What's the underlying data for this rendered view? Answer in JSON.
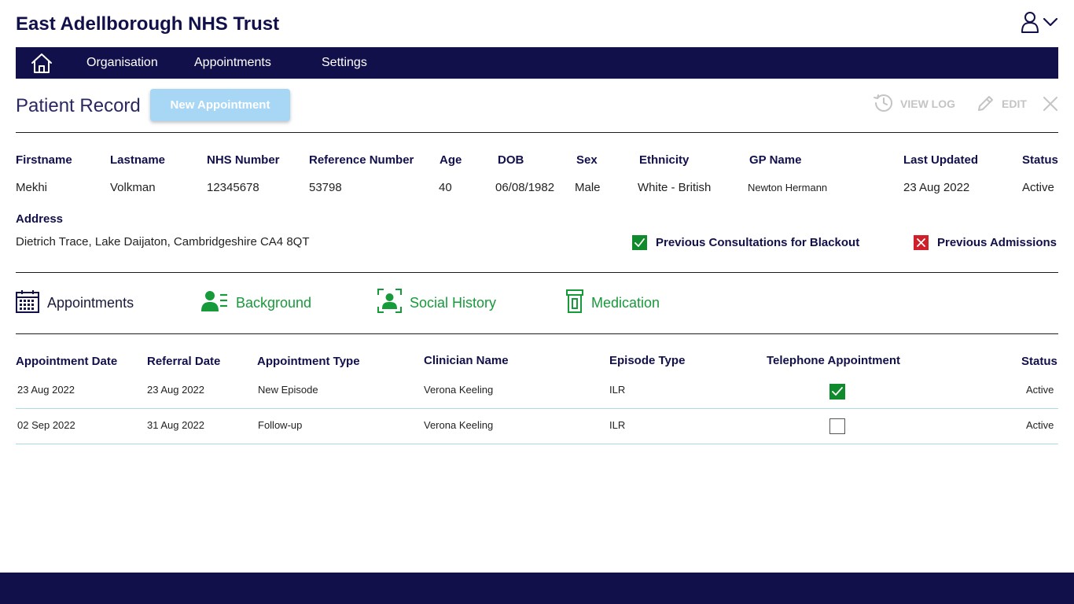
{
  "app": {
    "title": "East Adellborough NHS Trust"
  },
  "nav": {
    "home_icon": "home-icon",
    "items": [
      "Organisation",
      "Appointments",
      "Settings"
    ]
  },
  "page": {
    "title": "Patient Record",
    "new_appointment_label": "New Appointment",
    "actions": {
      "view_log": "VIEW LOG",
      "edit": "EDIT"
    }
  },
  "patient": {
    "headers": {
      "firstname": "Firstname",
      "lastname": "Lastname",
      "nhs_number": "NHS Number",
      "reference_number": "Reference Number",
      "age": "Age",
      "dob": "DOB",
      "sex": "Sex",
      "ethnicity": "Ethnicity",
      "gp_name": "GP Name",
      "last_updated": "Last Updated",
      "status": "Status"
    },
    "values": {
      "firstname": "Mekhi",
      "lastname": "Volkman",
      "nhs_number": "12345678",
      "reference_number": "53798",
      "age": "40",
      "dob": "06/08/1982",
      "sex": "Male",
      "ethnicity": "White - British",
      "gp_name": "Newton Hermann",
      "last_updated": "23 Aug 2022",
      "status": "Active"
    },
    "address_label": "Address",
    "address": "Dietrich Trace, Lake Daijaton, Cambridgeshire CA4 8QT",
    "flags": [
      {
        "label": "Previous Consultations for Blackout",
        "checked": true
      },
      {
        "label": "Previous Admissions",
        "checked": false
      }
    ]
  },
  "tabs": [
    {
      "label": "Appointments",
      "icon": "calendar-icon",
      "active": true
    },
    {
      "label": "Background",
      "icon": "users-list-icon",
      "active": false
    },
    {
      "label": "Social History",
      "icon": "user-frame-icon",
      "active": false
    },
    {
      "label": "Medication",
      "icon": "pill-bottle-icon",
      "active": false
    }
  ],
  "appointments": {
    "headers": {
      "appointment_date": "Appointment Date",
      "referral_date": "Referral Date",
      "appointment_type": "Appointment Type",
      "clinician_name": "Clinician Name",
      "episode_type": "Episode Type",
      "telephone": "Telephone Appointment",
      "status": "Status"
    },
    "rows": [
      {
        "appointment_date": "23 Aug 2022",
        "referral_date": "23 Aug 2022",
        "appointment_type": "New Episode",
        "clinician_name": "Verona Keeling",
        "episode_type": "ILR",
        "telephone": true,
        "status": "Active"
      },
      {
        "appointment_date": "02 Sep 2022",
        "referral_date": "31 Aug 2022",
        "appointment_type": "Follow-up",
        "clinician_name": "Verona Keeling",
        "episode_type": "ILR",
        "telephone": false,
        "status": "Active"
      }
    ]
  },
  "colors": {
    "navy": "#12104a",
    "green": "#179a3a",
    "red": "#cf1f2a",
    "button_disabled": "#a8d6f5",
    "row_divider": "#a9dde3"
  }
}
